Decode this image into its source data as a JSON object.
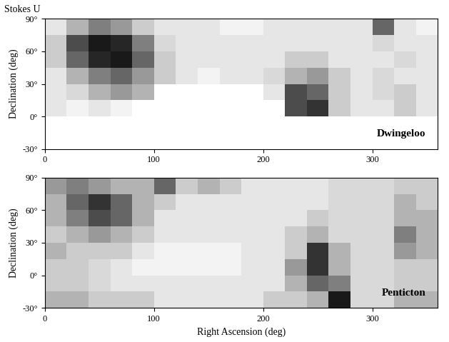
{
  "title": "Stokes U",
  "chart_data": [
    {
      "type": "heatmap",
      "label": "Dwingeloo",
      "ylabel": "Declination (deg)",
      "xlim": [
        0,
        360
      ],
      "ylim": [
        -30,
        90
      ],
      "xticks": [
        0,
        100,
        200,
        300
      ],
      "yticks": [
        {
          "value": -30,
          "label": "-30°"
        },
        {
          "value": 0,
          "label": "0°"
        },
        {
          "value": 30,
          "label": "30°"
        },
        {
          "value": 60,
          "label": "60°"
        },
        {
          "value": 90,
          "label": "90°"
        }
      ],
      "xbins": [
        0,
        20,
        40,
        60,
        80,
        100,
        120,
        140,
        160,
        180,
        200,
        220,
        240,
        260,
        280,
        300,
        320,
        340,
        360
      ],
      "ybins": [
        -30,
        -15,
        0,
        15,
        30,
        45,
        60,
        75,
        90
      ],
      "zlim": [
        0,
        1
      ],
      "cells": [
        [
          null,
          null,
          null,
          null,
          null,
          null,
          null,
          null,
          null,
          null,
          null,
          null,
          null,
          null,
          null,
          null,
          null,
          null
        ],
        [
          null,
          null,
          null,
          null,
          null,
          null,
          null,
          null,
          null,
          null,
          null,
          null,
          null,
          null,
          null,
          null,
          null,
          null
        ],
        [
          0.1,
          0.05,
          0.1,
          0.05,
          null,
          null,
          null,
          null,
          null,
          null,
          null,
          0.7,
          0.8,
          0.2,
          0.1,
          0.1,
          0.2,
          0.1
        ],
        [
          0.1,
          0.15,
          0.3,
          0.4,
          0.3,
          null,
          null,
          null,
          null,
          null,
          0.1,
          0.7,
          0.6,
          0.2,
          0.1,
          0.15,
          0.2,
          0.1
        ],
        [
          0.1,
          0.3,
          0.5,
          0.6,
          0.4,
          0.2,
          0.1,
          0.05,
          0.1,
          0.1,
          0.15,
          0.3,
          0.4,
          0.2,
          0.1,
          0.15,
          0.1,
          0.1
        ],
        [
          0.2,
          0.6,
          0.85,
          0.9,
          0.6,
          0.2,
          0.1,
          0.1,
          0.1,
          0.1,
          0.1,
          0.2,
          0.2,
          0.1,
          0.1,
          0.1,
          0.15,
          0.1
        ],
        [
          0.2,
          0.7,
          0.9,
          0.85,
          0.5,
          0.15,
          0.1,
          0.1,
          0.1,
          0.1,
          0.1,
          0.1,
          0.1,
          0.1,
          0.1,
          0.15,
          0.1,
          0.1
        ],
        [
          0.1,
          0.3,
          0.5,
          0.4,
          0.2,
          0.1,
          0.1,
          0.1,
          0.05,
          0.05,
          0.1,
          0.1,
          0.1,
          0.1,
          0.1,
          0.6,
          0.1,
          0.05
        ]
      ]
    },
    {
      "type": "heatmap",
      "label": "Penticton",
      "ylabel": "Declination (deg)",
      "xlabel": "Right Ascension (deg)",
      "xlim": [
        0,
        360
      ],
      "ylim": [
        -30,
        90
      ],
      "xticks": [
        0,
        100,
        200,
        300
      ],
      "yticks": [
        {
          "value": -30,
          "label": "-30°"
        },
        {
          "value": 0,
          "label": "0°"
        },
        {
          "value": 30,
          "label": "30°"
        },
        {
          "value": 60,
          "label": "60°"
        },
        {
          "value": 90,
          "label": "90°"
        }
      ],
      "xbins": [
        0,
        20,
        40,
        60,
        80,
        100,
        120,
        140,
        160,
        180,
        200,
        220,
        240,
        260,
        280,
        300,
        320,
        340,
        360
      ],
      "ybins": [
        -30,
        -15,
        0,
        15,
        30,
        45,
        60,
        75,
        90
      ],
      "zlim": [
        0,
        1
      ],
      "cells": [
        [
          0.3,
          0.3,
          0.2,
          0.2,
          0.2,
          0.1,
          0.1,
          0.1,
          0.1,
          0.1,
          0.2,
          0.2,
          0.3,
          0.9,
          0.15,
          0.15,
          0.3,
          0.3
        ],
        [
          0.2,
          0.2,
          0.15,
          0.1,
          0.1,
          0.1,
          0.1,
          0.1,
          0.1,
          0.1,
          0.1,
          0.3,
          0.6,
          0.5,
          0.15,
          0.15,
          0.2,
          0.2
        ],
        [
          0.2,
          0.2,
          0.15,
          0.1,
          0.05,
          0.05,
          0.05,
          0.05,
          0.05,
          0.1,
          0.1,
          0.4,
          0.8,
          0.3,
          0.15,
          0.15,
          0.2,
          0.2
        ],
        [
          0.3,
          0.2,
          0.2,
          0.2,
          0.1,
          0.05,
          0.05,
          0.05,
          0.05,
          0.1,
          0.1,
          0.2,
          0.8,
          0.3,
          0.15,
          0.15,
          0.4,
          0.3
        ],
        [
          0.2,
          0.3,
          0.4,
          0.3,
          0.2,
          0.1,
          0.1,
          0.1,
          0.1,
          0.1,
          0.1,
          0.2,
          0.3,
          0.15,
          0.15,
          0.15,
          0.5,
          0.3
        ],
        [
          0.3,
          0.5,
          0.7,
          0.6,
          0.3,
          0.1,
          0.1,
          0.1,
          0.1,
          0.1,
          0.1,
          0.1,
          0.2,
          0.15,
          0.15,
          0.15,
          0.3,
          0.3
        ],
        [
          0.3,
          0.6,
          0.8,
          0.6,
          0.3,
          0.2,
          0.1,
          0.1,
          0.1,
          0.1,
          0.1,
          0.1,
          0.1,
          0.15,
          0.15,
          0.15,
          0.3,
          0.2
        ],
        [
          0.4,
          0.5,
          0.4,
          0.3,
          0.3,
          0.6,
          0.2,
          0.3,
          0.2,
          0.1,
          0.1,
          0.1,
          0.1,
          0.15,
          0.15,
          0.15,
          0.2,
          0.2
        ]
      ]
    }
  ]
}
